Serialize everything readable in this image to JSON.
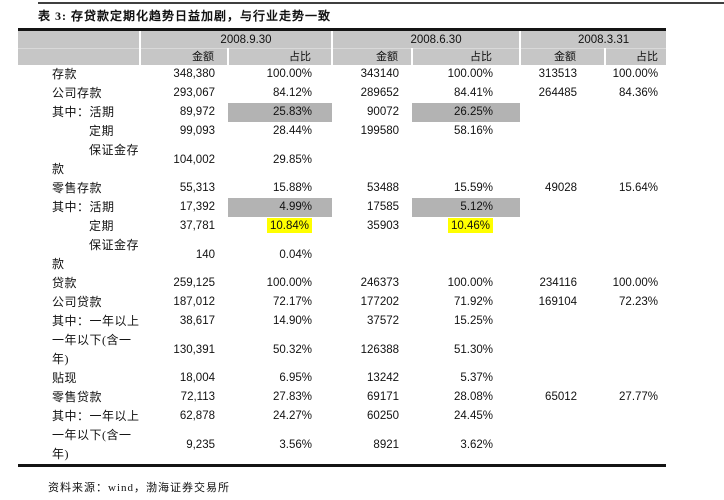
{
  "title": "表 3: 存贷款定期化趋势日益加剧，与行业走势一致",
  "source_note": "资料来源：wind，渤海证券交易所",
  "colors": {
    "header_bg": "#c6c6c6",
    "gray_highlight": "#b3b3b3",
    "yellow_highlight": "#ffff00"
  },
  "table": {
    "periods": [
      "2008.9.30",
      "2008.6.30",
      "2008.3.31"
    ],
    "amount_label": "金额",
    "share_label": "占比",
    "rows": [
      {
        "label": "存款",
        "indent": false,
        "cells": [
          "348,380",
          "100.00%",
          "343140",
          "100.00%",
          "313513",
          "100.00%"
        ],
        "marks": [
          "",
          "",
          "",
          "",
          "",
          ""
        ]
      },
      {
        "label": "公司存款",
        "indent": false,
        "cells": [
          "293,067",
          "84.12%",
          "289652",
          "84.41%",
          "264485",
          "84.36%"
        ],
        "marks": [
          "",
          "",
          "",
          "",
          "",
          ""
        ]
      },
      {
        "label": "其中：活期",
        "indent": false,
        "cells": [
          "89,972",
          "25.83%",
          "90072",
          "26.25%",
          "",
          ""
        ],
        "marks": [
          "",
          "gray",
          "",
          "gray",
          "",
          ""
        ]
      },
      {
        "label": "定期",
        "indent": true,
        "cells": [
          "99,093",
          "28.44%",
          "199580",
          "58.16%",
          "",
          ""
        ],
        "marks": [
          "",
          "",
          "",
          "",
          "",
          ""
        ]
      },
      {
        "label": "保证金存\n款",
        "indent": true,
        "cells": [
          "104,002",
          "29.85%",
          "",
          "",
          "",
          ""
        ],
        "marks": [
          "",
          "",
          "",
          "",
          "",
          ""
        ]
      },
      {
        "label": "零售存款",
        "indent": false,
        "cells": [
          "55,313",
          "15.88%",
          "53488",
          "15.59%",
          "49028",
          "15.64%"
        ],
        "marks": [
          "",
          "",
          "",
          "",
          "",
          ""
        ]
      },
      {
        "label": "其中：活期",
        "indent": false,
        "cells": [
          "17,392",
          "4.99%",
          "17585",
          "5.12%",
          "",
          ""
        ],
        "marks": [
          "",
          "gray",
          "",
          "gray",
          "",
          ""
        ]
      },
      {
        "label": "定期",
        "indent": true,
        "cells": [
          "37,781",
          "10.84%",
          "35903",
          "10.46%",
          "",
          ""
        ],
        "marks": [
          "",
          "yellow",
          "",
          "yellow",
          "",
          ""
        ]
      },
      {
        "label": "保证金存\n款",
        "indent": true,
        "cells": [
          "140",
          "0.04%",
          "",
          "",
          "",
          ""
        ],
        "marks": [
          "",
          "",
          "",
          "",
          "",
          ""
        ]
      },
      {
        "label": "贷款",
        "indent": false,
        "cells": [
          "259,125",
          "100.00%",
          "246373",
          "100.00%",
          "234116",
          "100.00%"
        ],
        "marks": [
          "",
          "",
          "",
          "",
          "",
          ""
        ]
      },
      {
        "label": "公司贷款",
        "indent": false,
        "cells": [
          "187,012",
          "72.17%",
          "177202",
          "71.92%",
          "169104",
          "72.23%"
        ],
        "marks": [
          "",
          "",
          "",
          "",
          "",
          ""
        ]
      },
      {
        "label": "其中：一年以上",
        "indent": false,
        "cells": [
          "38,617",
          "14.90%",
          "37572",
          "15.25%",
          "",
          ""
        ],
        "marks": [
          "",
          "",
          "",
          "",
          "",
          ""
        ]
      },
      {
        "label": "一年以下(含一\n年)",
        "indent": false,
        "cells": [
          "130,391",
          "50.32%",
          "126388",
          "51.30%",
          "",
          ""
        ],
        "marks": [
          "",
          "",
          "",
          "",
          "",
          ""
        ]
      },
      {
        "label": "贴现",
        "indent": false,
        "cells": [
          "18,004",
          "6.95%",
          "13242",
          "5.37%",
          "",
          ""
        ],
        "marks": [
          "",
          "",
          "",
          "",
          "",
          ""
        ]
      },
      {
        "label": "零售贷款",
        "indent": false,
        "cells": [
          "72,113",
          "27.83%",
          "69171",
          "28.08%",
          "65012",
          "27.77%"
        ],
        "marks": [
          "",
          "",
          "",
          "",
          "",
          ""
        ]
      },
      {
        "label": "其中：一年以上",
        "indent": false,
        "cells": [
          "62,878",
          "24.27%",
          "60250",
          "24.45%",
          "",
          ""
        ],
        "marks": [
          "",
          "",
          "",
          "",
          "",
          ""
        ]
      },
      {
        "label": "一年以下(含一\n年)",
        "indent": false,
        "cells": [
          "9,235",
          "3.56%",
          "8921",
          "3.62%",
          "",
          ""
        ],
        "marks": [
          "",
          "",
          "",
          "",
          "",
          ""
        ]
      }
    ]
  }
}
